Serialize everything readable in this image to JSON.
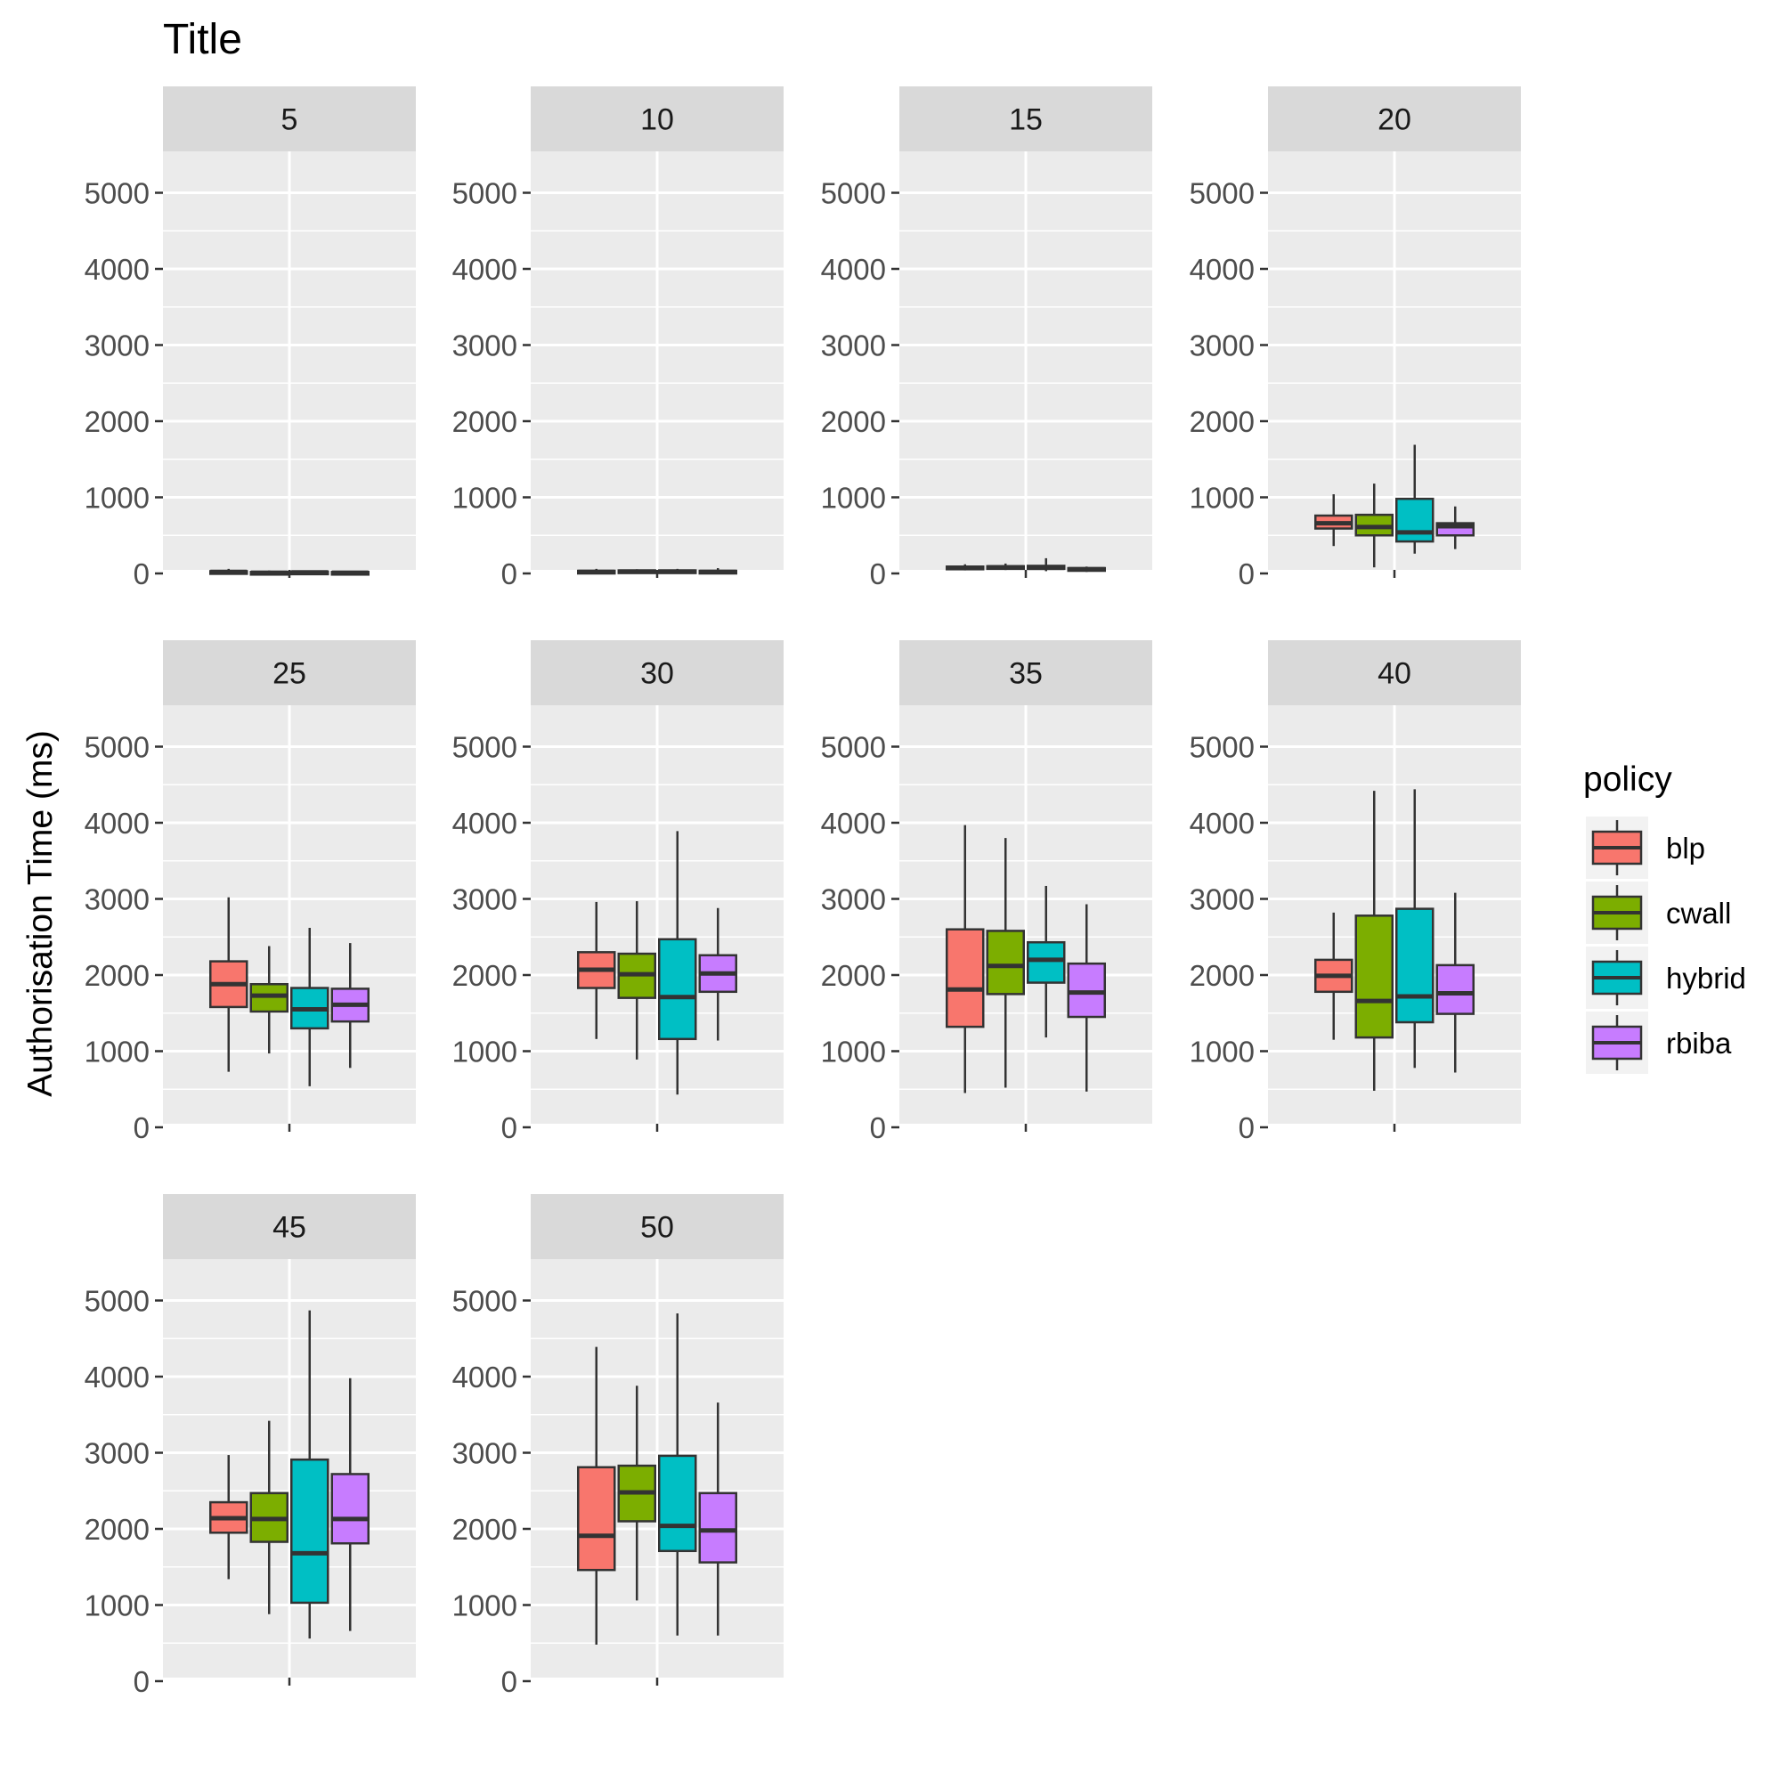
{
  "title": "Title",
  "colors": {
    "panel_bg": "#ebebeb",
    "strip_bg": "#d9d9d9",
    "grid": "#ffffff",
    "box_outline": "#333333",
    "tick": "#333333",
    "tick_label": "#4d4d4d"
  },
  "chart_data": {
    "type": "boxplot",
    "title": "Title",
    "ylabel": "Authorisation Time (ms)",
    "xlabel": "",
    "ylim": [
      0,
      5000
    ],
    "yticks": [
      0,
      1000,
      2000,
      3000,
      4000,
      5000
    ],
    "grid": true,
    "legend": {
      "title": "policy",
      "position": "right",
      "entries": [
        {
          "name": "blp",
          "color": "#f8766d"
        },
        {
          "name": "cwall",
          "color": "#7cae00"
        },
        {
          "name": "hybrid",
          "color": "#00bfc4"
        },
        {
          "name": "rbiba",
          "color": "#c77cff"
        }
      ]
    },
    "panels": [
      {
        "label": "5",
        "boxes": [
          {
            "policy": "blp",
            "min": 0,
            "q1": 10,
            "median": 20,
            "q3": 30,
            "max": 60
          },
          {
            "policy": "cwall",
            "min": 0,
            "q1": 5,
            "median": 10,
            "q3": 20,
            "max": 40
          },
          {
            "policy": "hybrid",
            "min": 0,
            "q1": 10,
            "median": 15,
            "q3": 25,
            "max": 40
          },
          {
            "policy": "rbiba",
            "min": 0,
            "q1": 5,
            "median": 10,
            "q3": 20,
            "max": 35
          }
        ]
      },
      {
        "label": "10",
        "boxes": [
          {
            "policy": "blp",
            "min": 0,
            "q1": 10,
            "median": 20,
            "q3": 35,
            "max": 60
          },
          {
            "policy": "cwall",
            "min": 0,
            "q1": 15,
            "median": 25,
            "q3": 40,
            "max": 55
          },
          {
            "policy": "hybrid",
            "min": 0,
            "q1": 15,
            "median": 25,
            "q3": 40,
            "max": 60
          },
          {
            "policy": "rbiba",
            "min": 0,
            "q1": 10,
            "median": 20,
            "q3": 35,
            "max": 70
          }
        ]
      },
      {
        "label": "15",
        "boxes": [
          {
            "policy": "blp",
            "min": 40,
            "q1": 60,
            "median": 75,
            "q3": 90,
            "max": 120
          },
          {
            "policy": "cwall",
            "min": 45,
            "q1": 65,
            "median": 80,
            "q3": 95,
            "max": 130
          },
          {
            "policy": "hybrid",
            "min": 30,
            "q1": 60,
            "median": 75,
            "q3": 100,
            "max": 200
          },
          {
            "policy": "rbiba",
            "min": 20,
            "q1": 40,
            "median": 55,
            "q3": 70,
            "max": 90
          }
        ]
      },
      {
        "label": "20",
        "boxes": [
          {
            "policy": "blp",
            "min": 360,
            "q1": 590,
            "median": 660,
            "q3": 760,
            "max": 1040
          },
          {
            "policy": "cwall",
            "min": 80,
            "q1": 500,
            "median": 610,
            "q3": 770,
            "max": 1180
          },
          {
            "policy": "hybrid",
            "min": 260,
            "q1": 420,
            "median": 540,
            "q3": 980,
            "max": 1690
          },
          {
            "policy": "rbiba",
            "min": 320,
            "q1": 500,
            "median": 620,
            "q3": 660,
            "max": 880
          }
        ]
      },
      {
        "label": "25",
        "boxes": [
          {
            "policy": "blp",
            "min": 730,
            "q1": 1580,
            "median": 1880,
            "q3": 2180,
            "max": 3020
          },
          {
            "policy": "cwall",
            "min": 970,
            "q1": 1520,
            "median": 1730,
            "q3": 1880,
            "max": 2380
          },
          {
            "policy": "hybrid",
            "min": 540,
            "q1": 1300,
            "median": 1550,
            "q3": 1830,
            "max": 2620
          },
          {
            "policy": "rbiba",
            "min": 780,
            "q1": 1390,
            "median": 1610,
            "q3": 1820,
            "max": 2420
          }
        ]
      },
      {
        "label": "30",
        "boxes": [
          {
            "policy": "blp",
            "min": 1160,
            "q1": 1830,
            "median": 2070,
            "q3": 2300,
            "max": 2960
          },
          {
            "policy": "cwall",
            "min": 890,
            "q1": 1700,
            "median": 2010,
            "q3": 2280,
            "max": 2970
          },
          {
            "policy": "hybrid",
            "min": 430,
            "q1": 1160,
            "median": 1710,
            "q3": 2470,
            "max": 3890
          },
          {
            "policy": "rbiba",
            "min": 1140,
            "q1": 1780,
            "median": 2020,
            "q3": 2260,
            "max": 2880
          }
        ]
      },
      {
        "label": "35",
        "boxes": [
          {
            "policy": "blp",
            "min": 450,
            "q1": 1320,
            "median": 1810,
            "q3": 2600,
            "max": 3970
          },
          {
            "policy": "cwall",
            "min": 520,
            "q1": 1750,
            "median": 2120,
            "q3": 2580,
            "max": 3800
          },
          {
            "policy": "hybrid",
            "min": 1180,
            "q1": 1900,
            "median": 2200,
            "q3": 2430,
            "max": 3170
          },
          {
            "policy": "rbiba",
            "min": 470,
            "q1": 1450,
            "median": 1770,
            "q3": 2150,
            "max": 2930
          }
        ]
      },
      {
        "label": "40",
        "boxes": [
          {
            "policy": "blp",
            "min": 1150,
            "q1": 1780,
            "median": 1990,
            "q3": 2200,
            "max": 2820
          },
          {
            "policy": "cwall",
            "min": 480,
            "q1": 1180,
            "median": 1660,
            "q3": 2780,
            "max": 4420
          },
          {
            "policy": "hybrid",
            "min": 780,
            "q1": 1380,
            "median": 1720,
            "q3": 2870,
            "max": 4440
          },
          {
            "policy": "rbiba",
            "min": 720,
            "q1": 1490,
            "median": 1760,
            "q3": 2130,
            "max": 3080
          }
        ]
      },
      {
        "label": "45",
        "boxes": [
          {
            "policy": "blp",
            "min": 1340,
            "q1": 1950,
            "median": 2140,
            "q3": 2350,
            "max": 2970
          },
          {
            "policy": "cwall",
            "min": 880,
            "q1": 1830,
            "median": 2130,
            "q3": 2470,
            "max": 3420
          },
          {
            "policy": "hybrid",
            "min": 560,
            "q1": 1030,
            "median": 1680,
            "q3": 2910,
            "max": 4870
          },
          {
            "policy": "rbiba",
            "min": 660,
            "q1": 1810,
            "median": 2130,
            "q3": 2720,
            "max": 3980
          }
        ]
      },
      {
        "label": "50",
        "boxes": [
          {
            "policy": "blp",
            "min": 480,
            "q1": 1460,
            "median": 1910,
            "q3": 2810,
            "max": 4390
          },
          {
            "policy": "cwall",
            "min": 1060,
            "q1": 2100,
            "median": 2480,
            "q3": 2830,
            "max": 3880
          },
          {
            "policy": "hybrid",
            "min": 600,
            "q1": 1710,
            "median": 2040,
            "q3": 2960,
            "max": 4830
          },
          {
            "policy": "rbiba",
            "min": 600,
            "q1": 1560,
            "median": 1980,
            "q3": 2470,
            "max": 3660
          }
        ]
      }
    ]
  }
}
